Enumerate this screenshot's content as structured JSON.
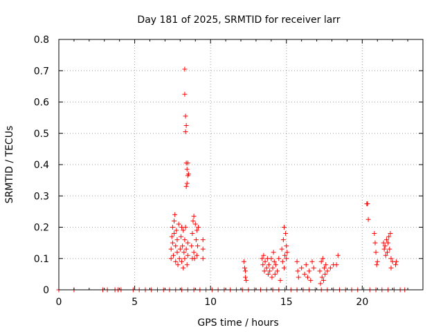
{
  "chart_data": {
    "type": "scatter",
    "title": "Day 181 of 2025, SRMTID for receiver larr",
    "xlabel": "GPS time / hours",
    "ylabel": "SRMTID / TECUs",
    "xlim": [
      0,
      24
    ],
    "ylim": [
      0,
      0.8
    ],
    "xticks": [
      0,
      5,
      10,
      15,
      20
    ],
    "yticks": [
      0,
      0.1,
      0.2,
      0.3,
      0.4,
      0.5,
      0.6,
      0.7,
      0.8
    ],
    "xtick_labels": [
      "0",
      "5",
      "10",
      "15",
      "20"
    ],
    "ytick_labels": [
      "0",
      "0.1",
      "0.2",
      "0.3",
      "0.4",
      "0.5",
      "0.6",
      "0.7",
      "0.8"
    ],
    "grid": true,
    "marker": "+",
    "color": "#ff0000",
    "series": [
      {
        "name": "SRMTID",
        "points": [
          [
            0.0,
            0.0
          ],
          [
            1.0,
            0.0
          ],
          [
            2.9,
            0.0
          ],
          [
            3.2,
            0.0
          ],
          [
            3.7,
            0.0
          ],
          [
            3.9,
            0.0
          ],
          [
            4.1,
            0.0
          ],
          [
            4.9,
            0.0
          ],
          [
            5.3,
            0.0
          ],
          [
            5.7,
            0.0
          ],
          [
            6.1,
            0.0
          ],
          [
            6.5,
            0.0
          ],
          [
            6.9,
            0.0
          ],
          [
            7.3,
            0.0
          ],
          [
            7.7,
            0.0
          ],
          [
            8.1,
            0.0
          ],
          [
            8.5,
            0.0
          ],
          [
            8.9,
            0.0
          ],
          [
            9.3,
            0.0
          ],
          [
            9.7,
            0.0
          ],
          [
            10.1,
            0.0
          ],
          [
            10.5,
            0.0
          ],
          [
            10.9,
            0.0
          ],
          [
            11.3,
            0.0
          ],
          [
            11.7,
            0.0
          ],
          [
            12.1,
            0.0
          ],
          [
            12.5,
            0.0
          ],
          [
            12.9,
            0.0
          ],
          [
            13.3,
            0.0
          ],
          [
            13.7,
            0.0
          ],
          [
            14.1,
            0.0
          ],
          [
            14.5,
            0.0
          ],
          [
            14.9,
            0.0
          ],
          [
            15.3,
            0.0
          ],
          [
            15.7,
            0.0
          ],
          [
            16.1,
            0.0
          ],
          [
            16.5,
            0.0
          ],
          [
            16.9,
            0.0
          ],
          [
            17.3,
            0.0
          ],
          [
            17.7,
            0.0
          ],
          [
            18.1,
            0.0
          ],
          [
            18.5,
            0.0
          ],
          [
            18.9,
            0.0
          ],
          [
            19.3,
            0.0
          ],
          [
            19.7,
            0.0
          ],
          [
            20.1,
            0.0
          ],
          [
            20.5,
            0.0
          ],
          [
            20.9,
            0.0
          ],
          [
            21.3,
            0.0
          ],
          [
            21.7,
            0.0
          ],
          [
            22.1,
            0.0
          ],
          [
            22.5,
            0.0
          ],
          [
            22.8,
            0.0
          ],
          [
            7.4,
            0.1
          ],
          [
            7.4,
            0.13
          ],
          [
            7.45,
            0.17
          ],
          [
            7.5,
            0.2
          ],
          [
            7.5,
            0.15
          ],
          [
            7.55,
            0.11
          ],
          [
            7.6,
            0.18
          ],
          [
            7.6,
            0.22
          ],
          [
            7.65,
            0.24
          ],
          [
            7.7,
            0.14
          ],
          [
            7.7,
            0.09
          ],
          [
            7.75,
            0.19
          ],
          [
            7.8,
            0.12
          ],
          [
            7.8,
            0.16
          ],
          [
            7.85,
            0.08
          ],
          [
            7.9,
            0.21
          ],
          [
            7.95,
            0.1
          ],
          [
            8.0,
            0.13
          ],
          [
            8.05,
            0.17
          ],
          [
            8.1,
            0.09
          ],
          [
            8.1,
            0.2
          ],
          [
            8.15,
            0.14
          ],
          [
            8.2,
            0.19
          ],
          [
            8.2,
            0.07
          ],
          [
            8.25,
            0.12
          ],
          [
            8.3,
            0.16
          ],
          [
            8.3,
            0.1
          ],
          [
            8.35,
            0.2
          ],
          [
            8.4,
            0.13
          ],
          [
            8.45,
            0.08
          ],
          [
            8.5,
            0.15
          ],
          [
            8.5,
            0.11
          ],
          [
            8.3,
            0.705
          ],
          [
            8.3,
            0.625
          ],
          [
            8.35,
            0.555
          ],
          [
            8.4,
            0.525
          ],
          [
            8.35,
            0.505
          ],
          [
            8.4,
            0.405
          ],
          [
            8.45,
            0.385
          ],
          [
            8.5,
            0.405
          ],
          [
            8.5,
            0.365
          ],
          [
            8.45,
            0.34
          ],
          [
            8.4,
            0.33
          ],
          [
            8.55,
            0.37
          ],
          [
            8.8,
            0.18
          ],
          [
            8.85,
            0.22
          ],
          [
            8.9,
            0.235
          ],
          [
            8.9,
            0.12
          ],
          [
            8.95,
            0.1
          ],
          [
            9.0,
            0.21
          ],
          [
            9.05,
            0.16
          ],
          [
            9.1,
            0.19
          ],
          [
            9.1,
            0.11
          ],
          [
            9.15,
            0.14
          ],
          [
            9.2,
            0.2
          ],
          [
            9.5,
            0.16
          ],
          [
            9.5,
            0.13
          ],
          [
            9.5,
            0.1
          ],
          [
            8.75,
            0.14
          ],
          [
            8.8,
            0.1
          ],
          [
            12.2,
            0.09
          ],
          [
            12.25,
            0.07
          ],
          [
            12.3,
            0.06
          ],
          [
            12.3,
            0.04
          ],
          [
            12.35,
            0.03
          ],
          [
            13.4,
            0.1
          ],
          [
            13.45,
            0.08
          ],
          [
            13.5,
            0.11
          ],
          [
            13.55,
            0.06
          ],
          [
            13.6,
            0.09
          ],
          [
            13.7,
            0.07
          ],
          [
            13.75,
            0.1
          ],
          [
            13.8,
            0.05
          ],
          [
            13.85,
            0.08
          ],
          [
            13.9,
            0.06
          ],
          [
            14.0,
            0.1
          ],
          [
            14.05,
            0.04
          ],
          [
            14.1,
            0.07
          ],
          [
            14.15,
            0.12
          ],
          [
            14.2,
            0.09
          ],
          [
            14.25,
            0.05
          ],
          [
            14.3,
            0.08
          ],
          [
            14.4,
            0.06
          ],
          [
            14.5,
            0.1
          ],
          [
            14.6,
            0.03
          ],
          [
            14.7,
            0.13
          ],
          [
            14.75,
            0.09
          ],
          [
            14.8,
            0.16
          ],
          [
            14.85,
            0.2
          ],
          [
            14.85,
            0.07
          ],
          [
            14.9,
            0.11
          ],
          [
            14.95,
            0.18
          ],
          [
            15.0,
            0.1
          ],
          [
            15.05,
            0.12
          ],
          [
            15.0,
            0.14
          ],
          [
            15.7,
            0.09
          ],
          [
            15.75,
            0.06
          ],
          [
            15.8,
            0.04
          ],
          [
            16.0,
            0.07
          ],
          [
            16.2,
            0.05
          ],
          [
            16.3,
            0.08
          ],
          [
            16.4,
            0.04
          ],
          [
            16.5,
            0.06
          ],
          [
            16.6,
            0.03
          ],
          [
            16.7,
            0.09
          ],
          [
            16.8,
            0.07
          ],
          [
            17.2,
            0.06
          ],
          [
            17.25,
            0.02
          ],
          [
            17.3,
            0.09
          ],
          [
            17.35,
            0.04
          ],
          [
            17.4,
            0.1
          ],
          [
            17.45,
            0.03
          ],
          [
            17.5,
            0.07
          ],
          [
            17.55,
            0.05
          ],
          [
            17.6,
            0.08
          ],
          [
            17.7,
            0.06
          ],
          [
            17.9,
            0.07
          ],
          [
            18.1,
            0.08
          ],
          [
            18.4,
            0.11
          ],
          [
            18.3,
            0.08
          ],
          [
            20.3,
            0.275
          ],
          [
            20.35,
            0.275
          ],
          [
            20.4,
            0.225
          ],
          [
            20.8,
            0.18
          ],
          [
            20.85,
            0.15
          ],
          [
            20.9,
            0.12
          ],
          [
            20.95,
            0.08
          ],
          [
            21.0,
            0.09
          ],
          [
            21.4,
            0.15
          ],
          [
            21.45,
            0.13
          ],
          [
            21.5,
            0.14
          ],
          [
            21.55,
            0.11
          ],
          [
            21.6,
            0.16
          ],
          [
            21.65,
            0.12
          ],
          [
            21.7,
            0.15
          ],
          [
            21.75,
            0.17
          ],
          [
            21.8,
            0.13
          ],
          [
            21.85,
            0.18
          ],
          [
            21.9,
            0.1
          ],
          [
            21.9,
            0.07
          ],
          [
            22.0,
            0.09
          ],
          [
            22.2,
            0.08
          ],
          [
            22.25,
            0.09
          ]
        ]
      }
    ]
  }
}
